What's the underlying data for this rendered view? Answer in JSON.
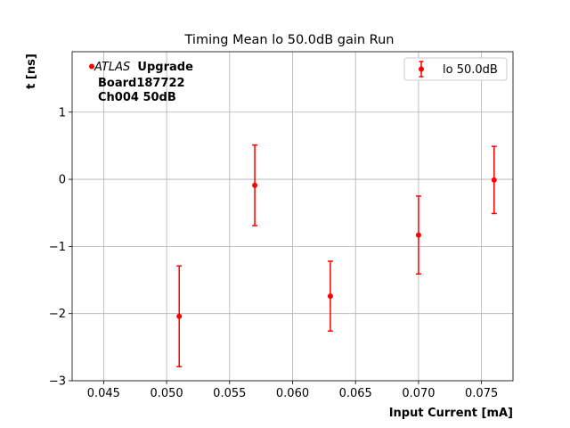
{
  "chart_data": {
    "type": "scatter",
    "title": "Timing Mean lo 50.0dB gain Run",
    "xlabel": "Input Current [mA]",
    "ylabel": "t [ns]",
    "xlim": [
      0.0425,
      0.0775
    ],
    "ylim": [
      -3.0,
      1.9
    ],
    "x_ticks": [
      0.045,
      0.05,
      0.055,
      0.06,
      0.065,
      0.07,
      0.075
    ],
    "x_tick_labels": [
      "0.045",
      "0.050",
      "0.055",
      "0.060",
      "0.065",
      "0.070",
      "0.075"
    ],
    "y_ticks": [
      -3,
      -2,
      -1,
      0,
      1
    ],
    "y_tick_labels": [
      "−3",
      "−2",
      "−1",
      "0",
      "1"
    ],
    "grid": true,
    "legend_position": "top-right",
    "color": "#ff0000",
    "series": [
      {
        "name": "lo 50.0dB",
        "x": [
          0.051,
          0.057,
          0.063,
          0.07,
          0.076
        ],
        "y": [
          -2.04,
          -0.09,
          -1.74,
          -0.83,
          -0.01
        ],
        "yerr": [
          0.75,
          0.6,
          0.52,
          0.58,
          0.5
        ]
      }
    ],
    "annotation": {
      "italic": "ATLAS",
      "bold": "Upgrade",
      "lines": [
        "Board187722",
        "Ch004 50dB"
      ]
    }
  }
}
